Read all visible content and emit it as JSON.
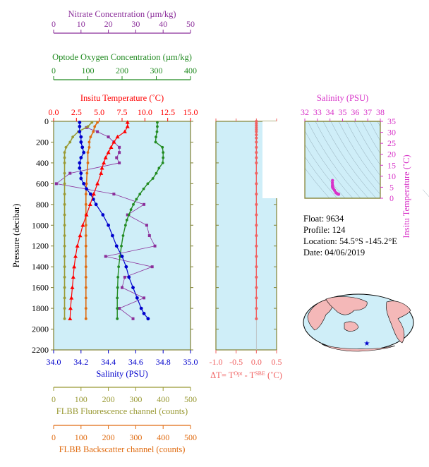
{
  "colors": {
    "temperature": "#ff0000",
    "salinity": "#0000cc",
    "oxygen": "#228b22",
    "nitrate": "#8b2e9a",
    "fluorescence": "#999933",
    "backscatter": "#e06b10",
    "delta_t": "#f06060",
    "ts_density": "#d833c8",
    "plot_bg": "#cfeef8",
    "axis": "#808030"
  },
  "info": {
    "float": "Float:  9634",
    "profile": "Profile:  124",
    "location": "Location:  54.5°S  -145.2°E",
    "date": "Date:  04/06/2019"
  },
  "chart_data": [
    {
      "type": "scatter",
      "id": "profiles",
      "ylabel": "Pressure (decibar)",
      "ylim": [
        2200,
        0
      ],
      "yticks": [
        0,
        200,
        400,
        600,
        800,
        1000,
        1200,
        1400,
        1600,
        1800,
        2000,
        2200
      ],
      "grid": false,
      "axes": [
        {
          "key": "nitrate",
          "label": "Nitrate Concentration (µm/kg)",
          "range": [
            0,
            50
          ],
          "ticks": [
            0,
            10,
            20,
            30,
            40,
            50
          ],
          "position": "top-1"
        },
        {
          "key": "oxygen",
          "label": "Optode Oxygen Concentration (µm/kg)",
          "range": [
            0,
            400
          ],
          "ticks": [
            0,
            100,
            200,
            300,
            400
          ],
          "position": "top-2"
        },
        {
          "key": "temperature",
          "label": "Insitu Temperature (˚C)",
          "range": [
            0,
            15
          ],
          "ticks": [
            "0.0",
            "2.5",
            "5.0",
            "7.5",
            "10.0",
            "12.5",
            "15.0"
          ],
          "position": "top-3"
        },
        {
          "key": "salinity",
          "label": "Salinity (PSU)",
          "range": [
            34.0,
            35.0
          ],
          "ticks": [
            "34.0",
            "34.2",
            "34.4",
            "34.6",
            "34.8",
            "35.0"
          ],
          "position": "bottom-1"
        },
        {
          "key": "fluorescence",
          "label": "FLBB Fluorescence channel (counts)",
          "range": [
            0,
            500
          ],
          "ticks": [
            0,
            100,
            200,
            300,
            400,
            500
          ],
          "position": "bottom-2"
        },
        {
          "key": "backscatter",
          "label": "FLBB Backscatter channel (counts)",
          "range": [
            0,
            500
          ],
          "ticks": [
            0,
            100,
            200,
            300,
            400,
            500
          ],
          "position": "bottom-3"
        }
      ],
      "series": {
        "temperature": {
          "pressure": [
            10,
            50,
            100,
            150,
            200,
            250,
            300,
            350,
            400,
            450,
            500,
            600,
            700,
            800,
            900,
            1000,
            1100,
            1200,
            1300,
            1400,
            1500,
            1600,
            1700,
            1800,
            1900
          ],
          "values": [
            8.1,
            8.1,
            7.8,
            7.0,
            6.6,
            6.3,
            6.0,
            5.7,
            5.5,
            5.3,
            5.2,
            4.8,
            4.4,
            4.0,
            3.6,
            3.2,
            2.9,
            2.6,
            2.4,
            2.25,
            2.15,
            2.05,
            1.95,
            1.85,
            1.8
          ]
        },
        "salinity": {
          "pressure": [
            10,
            50,
            100,
            150,
            200,
            250,
            300,
            350,
            400,
            450,
            500,
            550,
            600,
            650,
            700,
            750,
            800,
            900,
            1000,
            1100,
            1200,
            1300,
            1400,
            1500,
            1600,
            1700,
            1800,
            1850,
            1900
          ],
          "values": [
            34.19,
            34.19,
            34.19,
            34.2,
            34.2,
            34.21,
            34.22,
            34.2,
            34.19,
            34.19,
            34.2,
            34.2,
            34.22,
            34.24,
            34.27,
            34.29,
            34.31,
            34.36,
            34.4,
            34.43,
            34.46,
            34.5,
            34.53,
            34.55,
            34.58,
            34.61,
            34.64,
            34.66,
            34.69
          ]
        },
        "oxygen": {
          "pressure": [
            10,
            50,
            100,
            150,
            200,
            250,
            300,
            350,
            400,
            450,
            500,
            550,
            600,
            650,
            700,
            750,
            800,
            850,
            900,
            950,
            1000,
            1100,
            1200,
            1300,
            1400,
            1500,
            1600,
            1700,
            1800,
            1900
          ],
          "values": [
            303,
            303,
            302,
            299,
            298,
            318,
            320,
            320,
            319,
            308,
            300,
            290,
            275,
            263,
            252,
            242,
            233,
            226,
            220,
            214,
            210,
            203,
            198,
            194,
            190,
            188,
            187,
            186,
            186,
            186
          ]
        },
        "nitrate": {
          "pressure": [
            60,
            100,
            150,
            200,
            250,
            300,
            350,
            400,
            500,
            600,
            700,
            800,
            900,
            1000,
            1100,
            1200,
            1300,
            1400,
            1500,
            1600,
            1700,
            1800,
            1900
          ],
          "values": [
            12,
            16,
            20,
            22,
            24,
            24,
            23,
            24,
            6,
            1,
            22,
            33,
            27,
            34,
            35,
            37,
            19,
            36,
            26,
            25,
            33,
            24,
            29
          ]
        },
        "fluorescence": {
          "pressure": [
            10,
            50,
            100,
            150,
            200,
            250,
            300,
            350,
            400,
            500,
            600,
            700,
            800,
            900,
            1000,
            1100,
            1200,
            1300,
            1400,
            1500,
            1600,
            1700,
            1800,
            1900
          ],
          "values": [
            140,
            125,
            90,
            70,
            60,
            45,
            40,
            40,
            40,
            40,
            40,
            40,
            40,
            40,
            40,
            40,
            40,
            40,
            40,
            40,
            40,
            40,
            40,
            40
          ]
        },
        "backscatter": {
          "pressure": [
            10,
            50,
            100,
            150,
            200,
            250,
            300,
            400,
            500,
            600,
            700,
            800,
            900,
            1000,
            1100,
            1200,
            1300,
            1400,
            1500,
            1600,
            1700,
            1800,
            1900
          ],
          "values": [
            160,
            150,
            145,
            135,
            130,
            130,
            125,
            125,
            122,
            120,
            118,
            118,
            118,
            118,
            118,
            118,
            118,
            118,
            118,
            118,
            118,
            118,
            118
          ]
        }
      }
    },
    {
      "type": "scatter",
      "id": "delta-t",
      "xlabel": "ΔT= T",
      "xlabel_sup1": "Opt",
      "xlabel_mid": " - T",
      "xlabel_sup2": "SBE",
      "xlabel_tail": " (˚C)",
      "xlim": [
        -1.0,
        0.5
      ],
      "xticks": [
        "-1.0",
        "-0.5",
        "0.0",
        "0.5"
      ],
      "ylim": [
        2200,
        0
      ],
      "pressure": [
        0,
        20,
        40,
        60,
        80,
        100,
        130,
        160,
        200,
        250,
        300,
        350,
        400,
        500,
        600,
        700,
        800,
        900,
        1000,
        1100,
        1200,
        1300,
        1400,
        1500,
        1600,
        1700,
        1800,
        1900
      ],
      "values": [
        0.0,
        0.0,
        0.0,
        0.0,
        0.0,
        0.0,
        0.0,
        0.0,
        0.0,
        0.0,
        0.0,
        0.0,
        0.0,
        0.0,
        0.0,
        0.0,
        0.0,
        0.0,
        0.0,
        0.0,
        0.0,
        0.0,
        0.0,
        0.0,
        0.0,
        0.0,
        0.0,
        0.0
      ]
    },
    {
      "type": "scatter",
      "id": "ts-diagram",
      "xlabel": "Salinity (PSU)",
      "xlim": [
        32,
        38
      ],
      "xticks": [
        "32",
        "33",
        "34",
        "35",
        "36",
        "37",
        "38"
      ],
      "ylabel": "Insitu Temperature (˚C)",
      "ylim": [
        0,
        35
      ],
      "yticks": [
        "0",
        "5",
        "10",
        "15",
        "20",
        "25",
        "30",
        "35"
      ],
      "salinity": [
        34.2,
        34.19,
        34.2,
        34.21,
        34.2,
        34.22,
        34.27,
        34.36,
        34.46,
        34.53,
        34.58,
        34.64,
        34.69
      ],
      "temperature": [
        8.1,
        7.0,
        6.0,
        5.5,
        5.2,
        4.8,
        4.4,
        3.6,
        2.6,
        2.25,
        2.05,
        1.85,
        1.8
      ]
    }
  ]
}
